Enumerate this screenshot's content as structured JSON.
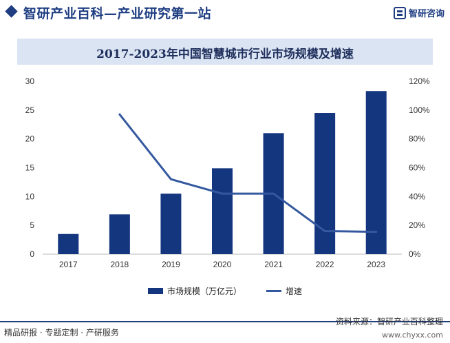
{
  "header": {
    "site_title": "智研产业百科—产业研究第一站",
    "logo_text": "智研咨询"
  },
  "chart_data": {
    "type": "bar",
    "title": "2017-2023年中国智慧城市行业市场规模及增速",
    "categories": [
      "2017",
      "2018",
      "2019",
      "2020",
      "2021",
      "2022",
      "2023"
    ],
    "series": [
      {
        "name": "市场规模（万亿元）",
        "type": "bar",
        "axis": "left",
        "color": "#14367f",
        "values": [
          3.5,
          6.9,
          10.5,
          14.9,
          21.0,
          24.5,
          28.3
        ]
      },
      {
        "name": "增速",
        "type": "line",
        "axis": "right",
        "color": "#34589f",
        "values": [
          null,
          97,
          52,
          42,
          42,
          16,
          15.5
        ]
      }
    ],
    "left_axis": {
      "ylim": [
        0,
        30
      ],
      "ticks": [
        "0",
        "5",
        "10",
        "15",
        "20",
        "25",
        "30"
      ]
    },
    "right_axis": {
      "ylim": [
        0,
        120
      ],
      "ticks": [
        "0%",
        "20%",
        "40%",
        "60%",
        "80%",
        "100%",
        "120%"
      ]
    },
    "grid": false,
    "legend_position": "bottom"
  },
  "footer": {
    "left": "精品研报 · 专题定制 · 产研服务",
    "source": "资料来源：智研产业百科整理",
    "url": "www.chyxx.com"
  }
}
